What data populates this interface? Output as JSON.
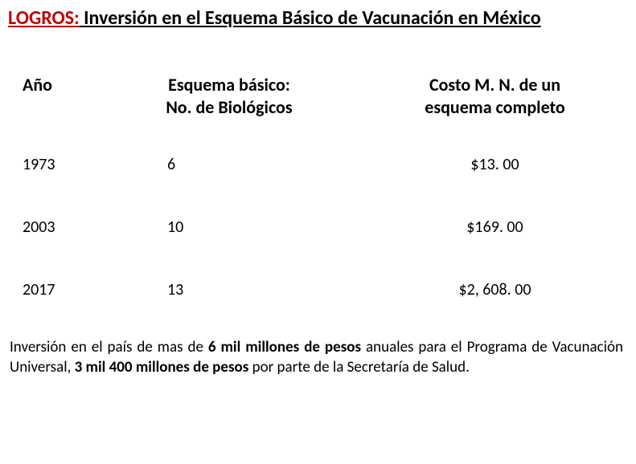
{
  "title": {
    "prefix": "LOGROS:",
    "rest": " Inversión en el Esquema Básico  de  Vacunación en México",
    "prefix_color": "#c00000",
    "rest_color": "#000000"
  },
  "table": {
    "columns": {
      "year": "Año",
      "scheme_line1": "Esquema básico:",
      "scheme_line2": "No. de Biológicos",
      "cost_line1": "Costo M. N. de un",
      "cost_line2": "esquema completo"
    },
    "rows": [
      {
        "year": "1973",
        "scheme": "6",
        "cost": "$13. 00"
      },
      {
        "year": "2003",
        "scheme": "10",
        "cost": "$169. 00"
      },
      {
        "year": "2017",
        "scheme": "13",
        "cost": "$2, 608. 00"
      }
    ]
  },
  "footnote": {
    "seg1": "Inversión en el país de mas de ",
    "bold1": "6 mil millones de pesos",
    "seg2": " anuales para el Programa de Vacunación Universal, ",
    "bold2": "3 mil 400 millones de pesos",
    "seg3": " por parte de la Secretaría de Salud."
  }
}
